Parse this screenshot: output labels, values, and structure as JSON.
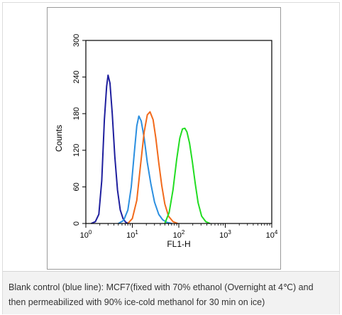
{
  "chart_data": {
    "type": "line",
    "xlabel": "FL1-H",
    "ylabel": "Counts",
    "x_scale": "log",
    "xlim": [
      1,
      10000
    ],
    "ylim": [
      0,
      300
    ],
    "x_ticks": [
      {
        "value": 1,
        "base": "10",
        "exp": "0"
      },
      {
        "value": 10,
        "base": "10",
        "exp": "1"
      },
      {
        "value": 100,
        "base": "10",
        "exp": "2"
      },
      {
        "value": 1000,
        "base": "10",
        "exp": "3"
      },
      {
        "value": 10000,
        "base": "10",
        "exp": "4"
      }
    ],
    "y_ticks": [
      0,
      60,
      120,
      180,
      240,
      300
    ],
    "grid": false,
    "series": [
      {
        "color": "#1f1f9e",
        "x": [
          1.3,
          1.6,
          1.9,
          2.2,
          2.5,
          2.8,
          3.0,
          3.3,
          3.7,
          4.2,
          4.8,
          5.5,
          6.3,
          7.2,
          8.3
        ],
        "y": [
          0,
          3,
          15,
          70,
          170,
          225,
          243,
          230,
          180,
          110,
          55,
          22,
          8,
          2,
          0
        ]
      },
      {
        "color": "#2b8fe0",
        "x": [
          5.0,
          6.5,
          8.0,
          9.5,
          11.0,
          12.5,
          13.8,
          15.5,
          18.0,
          21.0,
          25.0,
          30.0,
          37.0,
          45.0,
          55.0,
          70.0
        ],
        "y": [
          0,
          5,
          22,
          60,
          115,
          160,
          176,
          168,
          140,
          100,
          65,
          35,
          15,
          6,
          2,
          0
        ]
      },
      {
        "color": "#f26a1b",
        "x": [
          8.0,
          10.0,
          12.5,
          15.0,
          18.0,
          21.0,
          24.0,
          28.0,
          32.0,
          37.0,
          43.0,
          50.0,
          60.0,
          75.0,
          95.0
        ],
        "y": [
          0,
          8,
          38,
          95,
          150,
          178,
          183,
          170,
          140,
          100,
          62,
          32,
          12,
          3,
          0
        ]
      },
      {
        "color": "#22dd22",
        "x": [
          50,
          62,
          75,
          90,
          105,
          120,
          135,
          150,
          170,
          195,
          225,
          260,
          310,
          380,
          470
        ],
        "y": [
          0,
          18,
          55,
          105,
          140,
          155,
          156,
          150,
          132,
          102,
          66,
          34,
          12,
          3,
          0
        ]
      }
    ]
  },
  "caption": {
    "line1": "Blank control (blue line): MCF7(fixed with 70% ethanol (Overnight at 4℃) and",
    "line2": "then permeabilized with 90% ice-cold methanol for 30 min on ice)"
  }
}
